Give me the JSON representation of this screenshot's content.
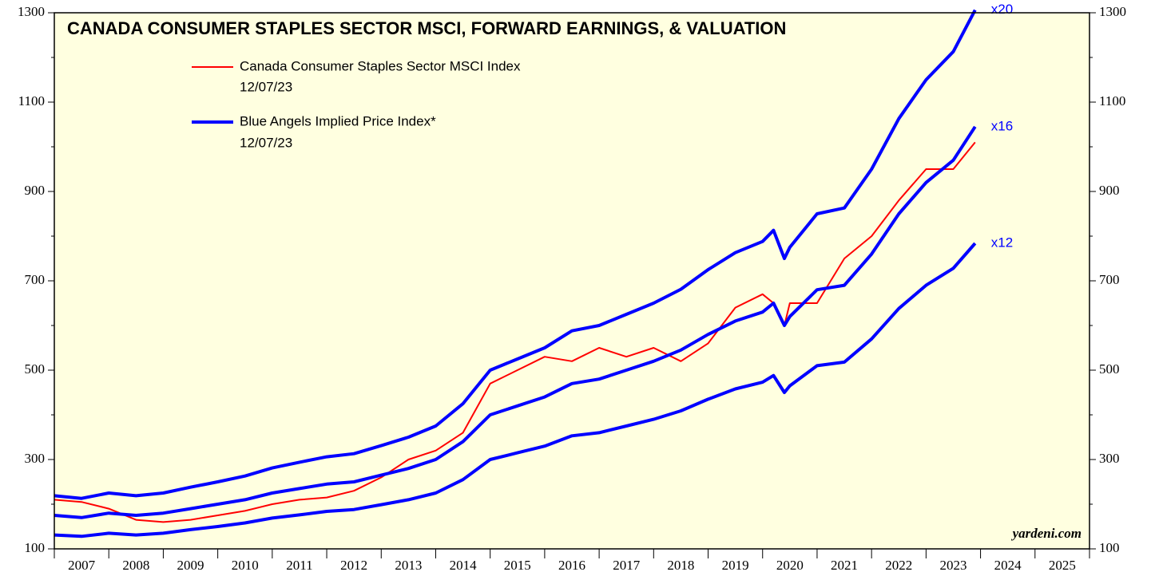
{
  "chart_data": {
    "type": "line",
    "title": "CANADA CONSUMER STAPLES SECTOR MSCI, FORWARD EARNINGS, & VALUATION",
    "watermark": "yardeni.com",
    "blue_legend_label": "Blue Angels Implied Price Index*",
    "legend_dates": [
      "12/07/23",
      "12/07/23"
    ],
    "x": [
      2007,
      2007.5,
      2008,
      2008.5,
      2009,
      2009.5,
      2010,
      2010.5,
      2011,
      2011.5,
      2012,
      2012.5,
      2013,
      2013.5,
      2014,
      2014.5,
      2015,
      2015.5,
      2016,
      2016.5,
      2017,
      2017.5,
      2018,
      2018.5,
      2019,
      2019.5,
      2020,
      2020.2,
      2020.4,
      2020.5,
      2021,
      2021.5,
      2022,
      2022.5,
      2023,
      2023.5,
      2023.9
    ],
    "series": [
      {
        "name": "Canada Consumer Staples Sector MSCI Index",
        "color": "#ff0000",
        "width": 2,
        "values": [
          210,
          205,
          190,
          165,
          160,
          165,
          175,
          185,
          200,
          210,
          215,
          230,
          260,
          300,
          320,
          360,
          470,
          500,
          530,
          520,
          550,
          530,
          550,
          520,
          560,
          640,
          670,
          650,
          600,
          650,
          650,
          750,
          800,
          880,
          950,
          950,
          1010
        ]
      },
      {
        "name": "x20",
        "color": "#0000ff",
        "width": 4,
        "values": [
          219,
          213,
          225,
          219,
          225,
          238,
          250,
          263,
          281,
          294,
          306,
          313,
          331,
          350,
          375,
          425,
          500,
          525,
          550,
          588,
          600,
          625,
          650,
          681,
          725,
          763,
          788,
          813,
          750,
          775,
          850,
          863,
          950,
          1063,
          1150,
          1213,
          1306
        ]
      },
      {
        "name": "x16",
        "color": "#0000ff",
        "width": 4,
        "values": [
          175,
          170,
          180,
          175,
          180,
          190,
          200,
          210,
          225,
          235,
          245,
          250,
          265,
          280,
          300,
          340,
          400,
          420,
          440,
          470,
          480,
          500,
          520,
          545,
          580,
          610,
          630,
          650,
          600,
          620,
          680,
          690,
          760,
          850,
          920,
          970,
          1045
        ]
      },
      {
        "name": "x12",
        "color": "#0000ff",
        "width": 4,
        "values": [
          131,
          128,
          135,
          131,
          135,
          143,
          150,
          158,
          169,
          176,
          184,
          188,
          199,
          210,
          225,
          255,
          300,
          315,
          330,
          353,
          360,
          375,
          390,
          409,
          435,
          458,
          473,
          488,
          450,
          465,
          510,
          518,
          570,
          638,
          690,
          728,
          784
        ]
      }
    ],
    "xlim": [
      2007,
      2026
    ],
    "xticks": [
      2007,
      2008,
      2009,
      2010,
      2011,
      2012,
      2013,
      2014,
      2015,
      2016,
      2017,
      2018,
      2019,
      2020,
      2021,
      2022,
      2023,
      2024,
      2025,
      2026
    ],
    "year_labels": [
      2007,
      2008,
      2009,
      2010,
      2011,
      2012,
      2013,
      2014,
      2015,
      2016,
      2017,
      2018,
      2019,
      2020,
      2021,
      2022,
      2023,
      2024,
      2025
    ],
    "ylim": [
      100,
      1300
    ],
    "yticks": [
      100,
      300,
      500,
      700,
      900,
      1100,
      1300
    ],
    "yticks_minor": [
      200,
      400,
      600,
      800,
      1000,
      1200
    ],
    "background": "#ffffe0"
  }
}
